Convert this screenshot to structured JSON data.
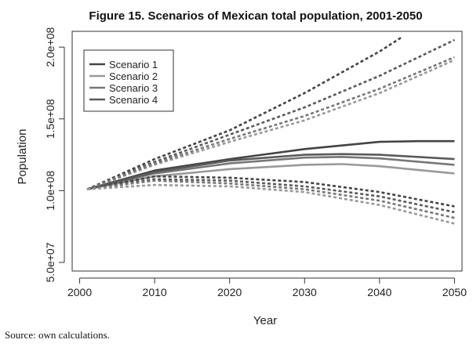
{
  "chart_data": {
    "type": "line",
    "title": "Figure 15. Scenarios of Mexican total population, 2001-2050",
    "xlabel": "Year",
    "ylabel": "Population",
    "xlim": [
      2000,
      2050
    ],
    "ylim": [
      50000000,
      210000000
    ],
    "x_ticks": [
      2000,
      2010,
      2020,
      2030,
      2040,
      2050
    ],
    "x_tick_labels": [
      "2000",
      "2010",
      "2020",
      "2030",
      "2040",
      "2050"
    ],
    "y_ticks": [
      50000000,
      100000000,
      150000000,
      200000000
    ],
    "y_tick_labels": [
      "5.0e+07",
      "1.0e+08",
      "1.5e+08",
      "2.0e+08"
    ],
    "legend_position": "top-left",
    "series": [
      {
        "name": "Scenario 1",
        "style": "solid",
        "color": "#444444",
        "x": [
          2001,
          2010,
          2020,
          2030,
          2040,
          2045,
          2050
        ],
        "y": [
          101000000,
          114000000,
          122000000,
          129000000,
          134000000,
          134500000,
          134500000
        ]
      },
      {
        "name": "Scenario 2",
        "style": "solid",
        "color": "#999999",
        "x": [
          2001,
          2010,
          2020,
          2030,
          2035,
          2040,
          2050
        ],
        "y": [
          101000000,
          110000000,
          115000000,
          118000000,
          118500000,
          117000000,
          112000000
        ]
      },
      {
        "name": "Scenario 3",
        "style": "solid",
        "color": "#777777",
        "x": [
          2001,
          2010,
          2020,
          2030,
          2035,
          2040,
          2050
        ],
        "y": [
          101000000,
          112000000,
          119000000,
          123000000,
          123500000,
          122500000,
          118000000
        ]
      },
      {
        "name": "Scenario 4",
        "style": "solid",
        "color": "#5a5a5a",
        "x": [
          2001,
          2010,
          2020,
          2030,
          2035,
          2040,
          2050
        ],
        "y": [
          101000000,
          113000000,
          121000000,
          125000000,
          125500000,
          125000000,
          122000000
        ]
      },
      {
        "name": "Scenario 1 upper bound",
        "style": "dashed",
        "color": "#444444",
        "legend": false,
        "x": [
          2001,
          2010,
          2020,
          2030,
          2040,
          2043
        ],
        "y": [
          101000000,
          122000000,
          142000000,
          168000000,
          197000000,
          207000000
        ]
      },
      {
        "name": "Scenario 4 upper bound",
        "style": "dashed",
        "color": "#5a5a5a",
        "legend": false,
        "x": [
          2001,
          2010,
          2020,
          2030,
          2040,
          2050
        ],
        "y": [
          101000000,
          120000000,
          139000000,
          158000000,
          180000000,
          205000000
        ]
      },
      {
        "name": "Scenario 2 upper bound",
        "style": "dashed",
        "color": "#999999",
        "legend": false,
        "x": [
          2001,
          2010,
          2020,
          2030,
          2040,
          2050
        ],
        "y": [
          101000000,
          118000000,
          134000000,
          149000000,
          168000000,
          191000000
        ]
      },
      {
        "name": "Scenario 3 upper bound",
        "style": "dashed",
        "color": "#777777",
        "legend": false,
        "x": [
          2001,
          2010,
          2020,
          2030,
          2040,
          2050
        ],
        "y": [
          101000000,
          119000000,
          136000000,
          152000000,
          171000000,
          193000000
        ]
      },
      {
        "name": "Scenario 1 lower bound",
        "style": "dashed",
        "color": "#444444",
        "legend": false,
        "x": [
          2001,
          2010,
          2020,
          2030,
          2040,
          2050
        ],
        "y": [
          101000000,
          110000000,
          109000000,
          106000000,
          99000000,
          89000000
        ]
      },
      {
        "name": "Scenario 4 lower bound",
        "style": "dashed",
        "color": "#5a5a5a",
        "legend": false,
        "x": [
          2001,
          2010,
          2020,
          2030,
          2040,
          2050
        ],
        "y": [
          101000000,
          108000000,
          107000000,
          103000000,
          96000000,
          85000000
        ]
      },
      {
        "name": "Scenario 3 lower bound",
        "style": "dashed",
        "color": "#777777",
        "legend": false,
        "x": [
          2001,
          2010,
          2020,
          2030,
          2040,
          2050
        ],
        "y": [
          101000000,
          107000000,
          105000000,
          101000000,
          93000000,
          81000000
        ]
      },
      {
        "name": "Scenario 2 lower bound",
        "style": "dashed",
        "color": "#999999",
        "legend": false,
        "x": [
          2001,
          2010,
          2020,
          2030,
          2040,
          2050
        ],
        "y": [
          101000000,
          104000000,
          103000000,
          99000000,
          90000000,
          77000000
        ]
      }
    ]
  },
  "footer": {
    "source": "Source: own calculations."
  }
}
